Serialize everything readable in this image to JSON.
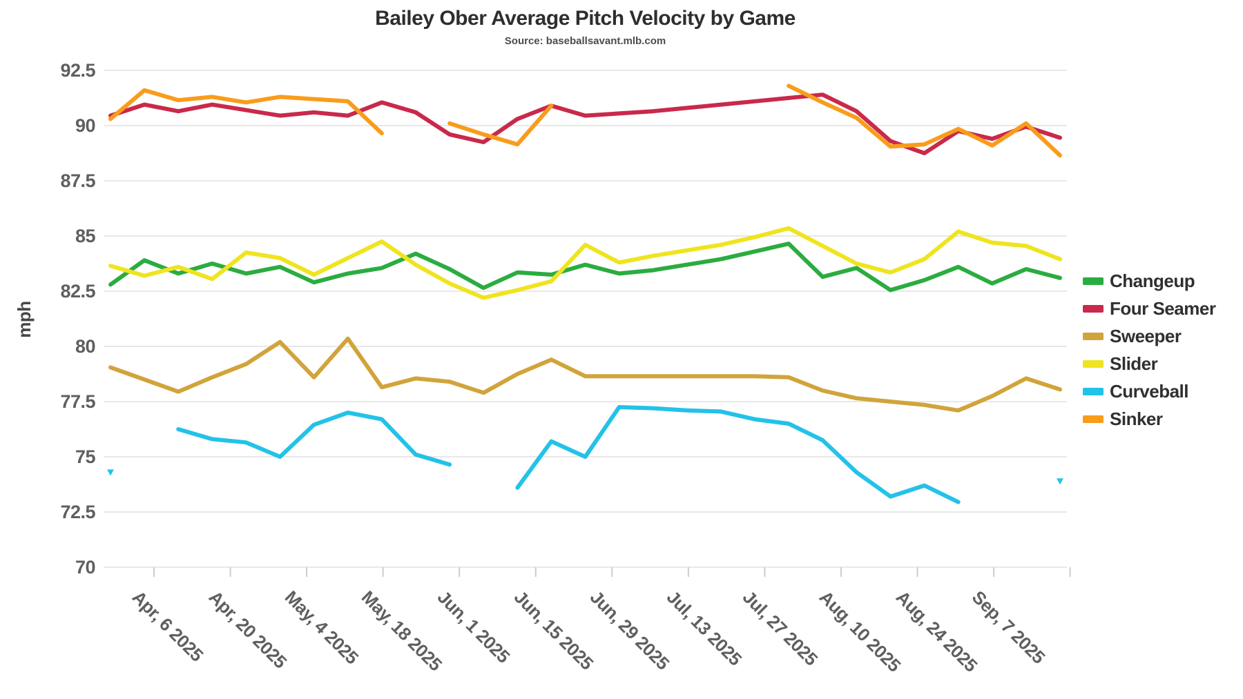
{
  "title": "Bailey Ober Average Pitch Velocity by Game",
  "subtitle": "Source: baseballsavant.mlb.com",
  "y_axis": {
    "label": "mph",
    "ticks": [
      {
        "label": "92.5",
        "value": 92.5
      },
      {
        "label": "90",
        "value": 90
      },
      {
        "label": "87.5",
        "value": 87.5
      },
      {
        "label": "85",
        "value": 85
      },
      {
        "label": "82.5",
        "value": 82.5
      },
      {
        "label": "80",
        "value": 80
      },
      {
        "label": "77.5",
        "value": 77.5
      },
      {
        "label": "75",
        "value": 75
      },
      {
        "label": "72.5",
        "value": 72.5
      },
      {
        "label": "70",
        "value": 70
      }
    ]
  },
  "x_axis": {
    "ticks": [
      {
        "label": "Apr, 6 2025"
      },
      {
        "label": "Apr, 20 2025"
      },
      {
        "label": "May, 4 2025"
      },
      {
        "label": "May, 18 2025"
      },
      {
        "label": "Jun, 1 2025"
      },
      {
        "label": "Jun, 15 2025"
      },
      {
        "label": "Jun, 29 2025"
      },
      {
        "label": "Jul, 13 2025"
      },
      {
        "label": "Jul, 27 2025"
      },
      {
        "label": "Aug, 10 2025"
      },
      {
        "label": "Aug, 24 2025"
      },
      {
        "label": "Sep, 7 2025"
      }
    ]
  },
  "legend": {
    "items": [
      {
        "id": "changeup",
        "label": "Changeup",
        "color": "#2BAC40"
      },
      {
        "id": "four_seamer",
        "label": "Four Seamer",
        "color": "#C9294A"
      },
      {
        "id": "sweeper",
        "label": "Sweeper",
        "color": "#D1A43B"
      },
      {
        "id": "slider",
        "label": "Slider",
        "color": "#EFE41F"
      },
      {
        "id": "curveball",
        "label": "Curveball",
        "color": "#23C2E8"
      },
      {
        "id": "sinker",
        "label": "Sinker",
        "color": "#F99C1C"
      }
    ]
  },
  "chart_data": {
    "type": "line",
    "title": "Bailey Ober Average Pitch Velocity by Game",
    "subtitle": "Source: baseballsavant.mlb.com",
    "xlabel": "",
    "ylabel": "mph",
    "ylim": [
      70,
      92.5
    ],
    "grid": "horizontal",
    "legend_position": "right",
    "x": {
      "unit": "game date (2025)",
      "dates": [
        "Mar 29",
        "Apr 4",
        "Apr 10",
        "Apr 16",
        "Apr 22",
        "Apr 28",
        "May 4",
        "May 10",
        "May 16",
        "May 22",
        "May 28",
        "Jun 3",
        "Jun 9",
        "Jun 15",
        "Jun 21",
        "Jun 27",
        "Jul 3",
        "Jul 9",
        "Jul 15",
        "Jul 21",
        "Jul 27",
        "Aug 2",
        "Aug 8",
        "Aug 14",
        "Aug 20",
        "Aug 26",
        "Sep 1",
        "Sep 7",
        "Sep 13"
      ]
    },
    "series": [
      {
        "id": "changeup",
        "name": "Changeup",
        "color": "#2BAC40",
        "values": [
          82.8,
          83.9,
          83.3,
          83.75,
          83.3,
          83.6,
          82.9,
          83.3,
          83.55,
          84.2,
          83.5,
          82.65,
          83.35,
          83.25,
          83.7,
          83.3,
          83.45,
          83.7,
          83.95,
          84.3,
          84.65,
          83.15,
          83.55,
          82.55,
          83.0,
          83.6,
          82.85,
          83.5,
          83.1
        ]
      },
      {
        "id": "four_seamer",
        "name": "Four Seamer",
        "color": "#C9294A",
        "values": [
          90.45,
          90.95,
          90.65,
          90.95,
          90.7,
          90.45,
          90.6,
          90.45,
          91.05,
          90.6,
          89.6,
          89.25,
          90.3,
          90.9,
          90.45,
          90.55,
          90.65,
          90.8,
          90.95,
          91.1,
          91.25,
          91.4,
          90.65,
          89.3,
          88.75,
          89.75,
          89.4,
          89.95,
          89.45
        ]
      },
      {
        "id": "sweeper",
        "name": "Sweeper",
        "color": "#D1A43B",
        "values": [
          79.05,
          78.5,
          77.95,
          78.6,
          79.2,
          80.2,
          78.6,
          80.35,
          78.15,
          78.55,
          78.4,
          77.9,
          78.75,
          79.4,
          78.65,
          78.65,
          78.65,
          78.65,
          78.65,
          78.65,
          78.6,
          78.0,
          77.65,
          77.5,
          77.35,
          77.1,
          77.75,
          78.55,
          78.05
        ]
      },
      {
        "id": "slider",
        "name": "Slider",
        "color": "#EFE41F",
        "values": [
          83.65,
          83.2,
          83.6,
          83.05,
          84.25,
          84.0,
          83.25,
          84.0,
          84.75,
          83.7,
          82.85,
          82.2,
          82.55,
          82.95,
          84.6,
          83.8,
          84.1,
          84.35,
          84.6,
          84.95,
          85.35,
          84.55,
          83.75,
          83.35,
          83.95,
          85.2,
          84.7,
          84.55,
          83.95
        ]
      },
      {
        "id": "curveball",
        "name": "Curveball",
        "color": "#23C2E8",
        "values": [
          74.3,
          null,
          76.25,
          75.8,
          75.65,
          75.0,
          76.45,
          77.0,
          76.7,
          75.1,
          74.65,
          null,
          73.6,
          75.7,
          75.0,
          77.25,
          77.2,
          77.1,
          77.05,
          76.7,
          76.5,
          75.75,
          74.3,
          73.2,
          73.7,
          72.95,
          null,
          null,
          73.9
        ]
      },
      {
        "id": "sinker",
        "name": "Sinker",
        "color": "#F99C1C",
        "values": [
          90.3,
          91.6,
          91.15,
          91.3,
          91.05,
          91.3,
          91.2,
          91.1,
          89.65,
          null,
          90.1,
          89.6,
          89.15,
          90.9,
          null,
          null,
          null,
          null,
          null,
          null,
          91.8,
          91.05,
          90.35,
          89.05,
          89.15,
          89.85,
          89.1,
          90.1,
          88.65
        ]
      }
    ],
    "notes": "Gaps where pitch was not thrown; isolated games rendered as small triangle markers (Curveball first and last game)."
  }
}
